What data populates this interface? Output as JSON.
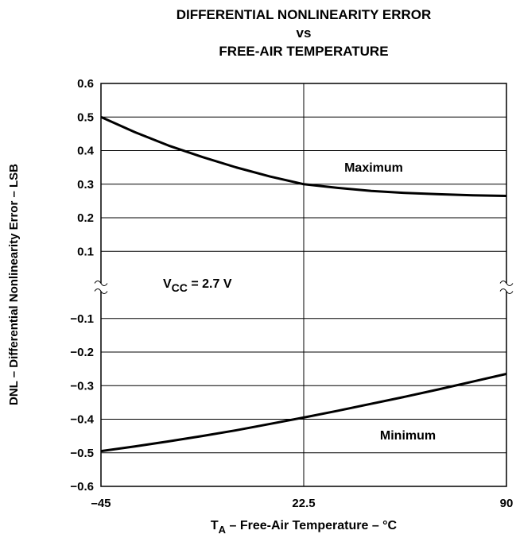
{
  "chart_data": {
    "type": "line",
    "title": [
      "DIFFERENTIAL NONLINEARITY ERROR",
      "vs",
      "FREE-AIR TEMPERATURE"
    ],
    "x_label": [
      "T",
      "A",
      " – Free-Air Temperature – °C"
    ],
    "y_label": "DNL – Differential Nonlinearity Error – LSB",
    "annotation": [
      "V",
      "CC",
      " = 2.7 V"
    ],
    "x": [
      -45,
      -33.75,
      -22.5,
      -11.25,
      0,
      11.25,
      22.5,
      33.75,
      45,
      56.25,
      67.5,
      78.75,
      90
    ],
    "series": [
      {
        "name": "Maximum",
        "color": "#000000",
        "values": [
          0.5,
          0.455,
          0.415,
          0.381,
          0.35,
          0.323,
          0.3,
          0.289,
          0.28,
          0.274,
          0.27,
          0.267,
          0.265
        ]
      },
      {
        "name": "Minimum",
        "color": "#000000",
        "values": [
          -0.495,
          -0.481,
          -0.466,
          -0.45,
          -0.433,
          -0.414,
          -0.395,
          -0.375,
          -0.354,
          -0.333,
          -0.311,
          -0.288,
          -0.265
        ]
      }
    ],
    "xlim": [
      -45,
      90
    ],
    "xticks": [
      {
        "value": -45,
        "label": "–45"
      },
      22.5,
      90
    ],
    "ylim": [
      -0.6,
      0.6
    ],
    "yticks": [
      {
        "value": -0.6,
        "label": "−0.6"
      },
      {
        "value": -0.5,
        "label": "−0.5"
      },
      {
        "value": -0.4,
        "label": "−0.4"
      },
      {
        "value": -0.3,
        "label": "−0.3"
      },
      {
        "value": -0.2,
        "label": "−0.2"
      },
      {
        "value": -0.1,
        "label": "−0.1"
      },
      0.1,
      0.2,
      0.3,
      0.4,
      0.5,
      0.6
    ],
    "axis_break": true,
    "grid": true
  }
}
